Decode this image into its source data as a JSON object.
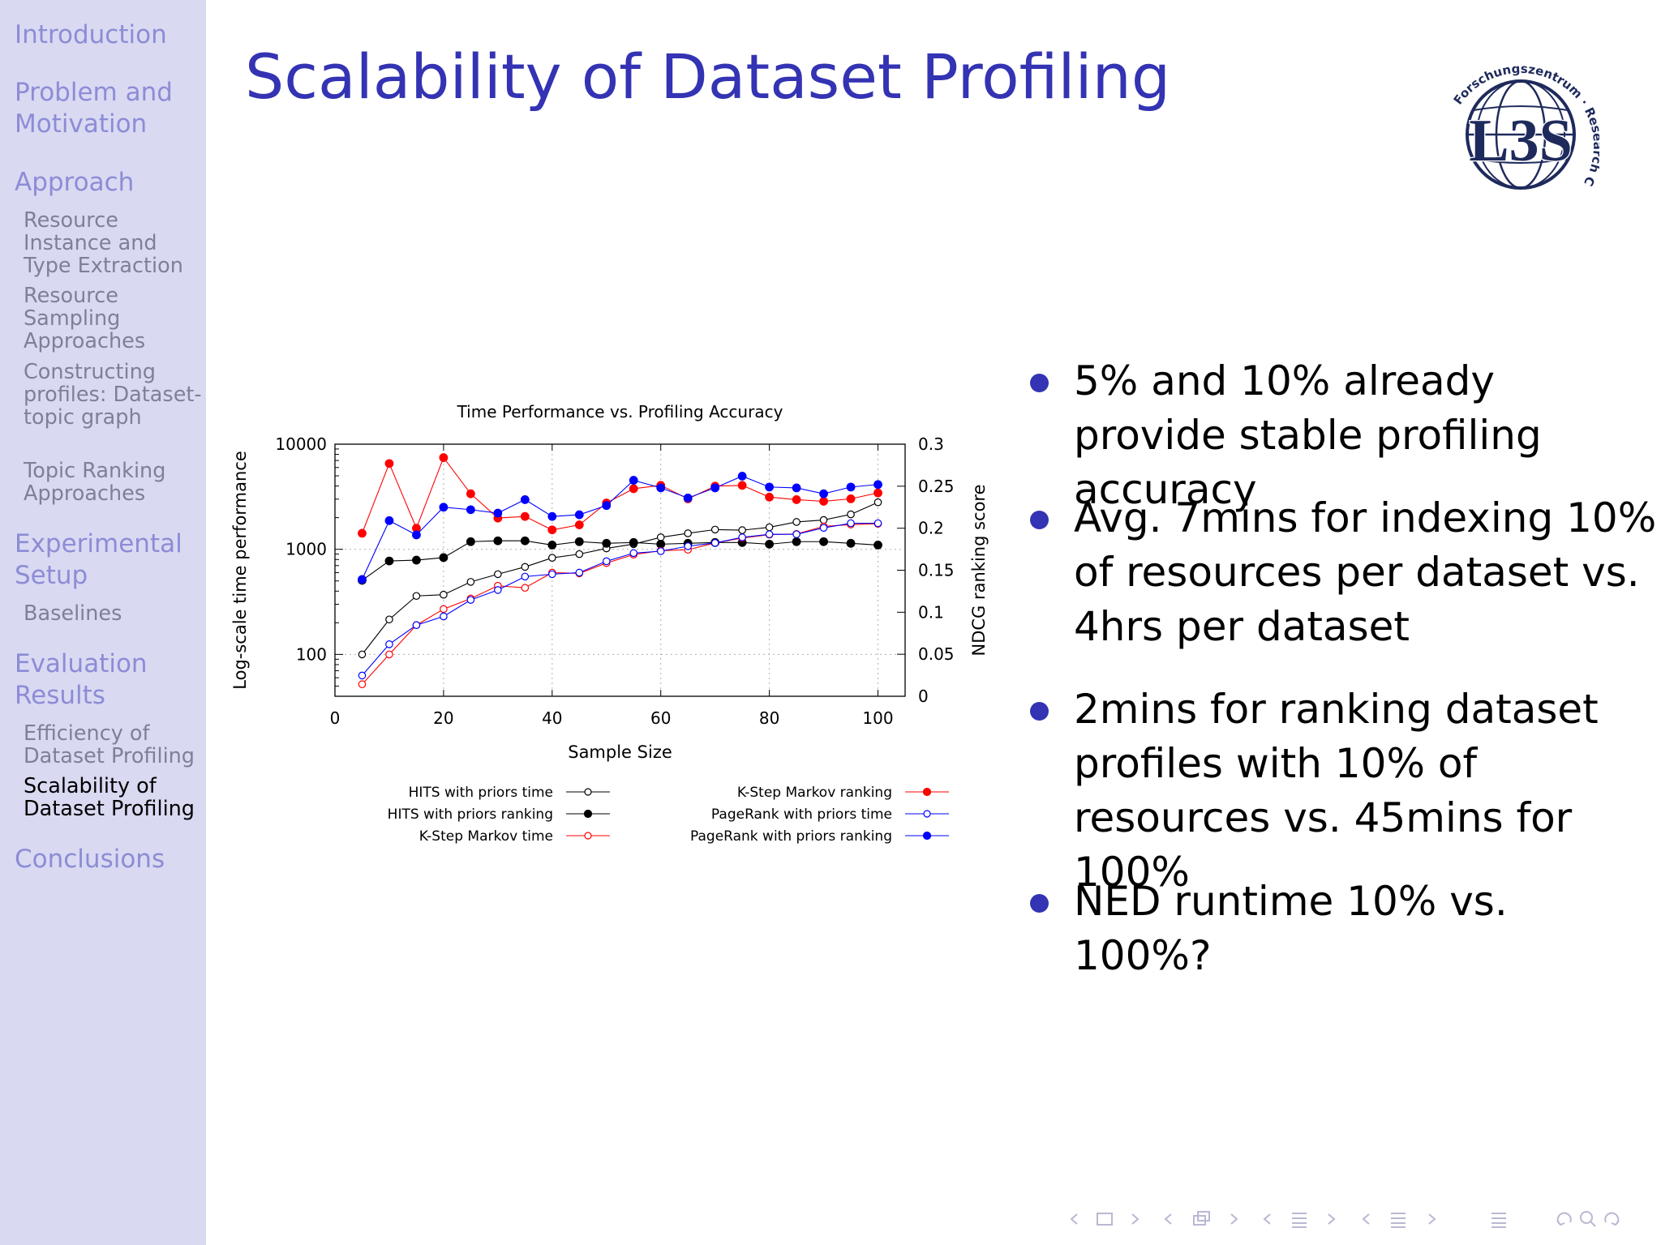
{
  "sidebar": {
    "sections": [
      {
        "label": "Introduction",
        "subs": []
      },
      {
        "label": "Problem and Motivation",
        "subs": []
      },
      {
        "label": "Approach",
        "subs": [
          "Resource Instance and Type Extraction",
          "Resource Sampling Approaches",
          "Constructing profiles: Dataset-topic graph",
          "Topic Ranking Approaches"
        ]
      },
      {
        "label": "Experimental Setup",
        "subs": [
          "Baselines"
        ]
      },
      {
        "label": "Evaluation Results",
        "subs": [
          "Efficiency of Dataset Profiling",
          "Scalability of Dataset Profiling"
        ]
      },
      {
        "label": "Conclusions",
        "subs": []
      }
    ],
    "active": "Scalability of Dataset Profiling"
  },
  "slide": {
    "title": "Scalability of Dataset Profiling",
    "logo": {
      "arc_text": "Forschungszentrum · Research Center",
      "mark": "L3S"
    },
    "bullets": [
      "5% and 10% already provide stable profiling accuracy",
      "Avg. 7mins for indexing 10% of resources per dataset vs. 4hrs per dataset",
      "2mins for ranking dataset profiles with 10% of resources vs. 45mins for 100%",
      "NED runtime 10% vs. 100%?"
    ]
  },
  "chart_data": {
    "type": "line",
    "title": "Time Performance vs. Profiling Accuracy",
    "xlabel": "Sample Size",
    "ylabel": "Log-scale time performance",
    "y2label": "NDCG ranking score",
    "xlim": [
      0,
      105
    ],
    "ylim": [
      40,
      10000
    ],
    "y2lim": [
      0,
      0.3
    ],
    "yscale": "log",
    "xticks": [
      0,
      20,
      40,
      60,
      80,
      100
    ],
    "yticks": [
      100,
      1000,
      10000
    ],
    "ytick_labels": [
      "100",
      "1000",
      "10000"
    ],
    "y2ticks": [
      0,
      0.05,
      0.1,
      0.15,
      0.2,
      0.25,
      0.3
    ],
    "y2tick_labels": [
      "0",
      "0.05",
      "0.1",
      "0.15",
      "0.2",
      "0.25",
      "0.3"
    ],
    "grid": true,
    "x": [
      5,
      10,
      15,
      20,
      25,
      30,
      35,
      40,
      45,
      50,
      55,
      60,
      65,
      70,
      75,
      80,
      85,
      90,
      95,
      100
    ],
    "series": [
      {
        "name": "HITS with priors time",
        "axis": "left",
        "color": "#000000",
        "filled": false,
        "values": [
          100,
          215,
          360,
          370,
          490,
          580,
          680,
          830,
          900,
          1020,
          1120,
          1300,
          1420,
          1540,
          1520,
          1620,
          1820,
          1900,
          2150,
          2800
        ]
      },
      {
        "name": "HITS with priors ranking",
        "axis": "right",
        "color": "#000000",
        "filled": true,
        "values": [
          0.138,
          0.161,
          0.162,
          0.165,
          0.184,
          0.185,
          0.185,
          0.18,
          0.184,
          0.182,
          0.183,
          0.181,
          0.182,
          0.183,
          0.183,
          0.181,
          0.184,
          0.184,
          0.182,
          0.18
        ]
      },
      {
        "name": "K-Step Markov time",
        "axis": "left",
        "color": "#ff0000",
        "filled": false,
        "values": [
          52,
          100,
          190,
          270,
          340,
          450,
          430,
          600,
          590,
          740,
          890,
          970,
          990,
          1150,
          1280,
          1380,
          1400,
          1650,
          1720,
          1750
        ]
      },
      {
        "name": "K-Step Markov ranking",
        "axis": "right",
        "color": "#ff0000",
        "filled": true,
        "values": [
          0.194,
          0.277,
          0.2,
          0.284,
          0.241,
          0.212,
          0.214,
          0.198,
          0.204,
          0.23,
          0.247,
          0.251,
          0.235,
          0.25,
          0.251,
          0.237,
          0.234,
          0.232,
          0.235,
          0.242
        ]
      },
      {
        "name": "PageRank with priors time",
        "axis": "left",
        "color": "#0000ff",
        "filled": false,
        "values": [
          63,
          125,
          190,
          230,
          330,
          410,
          550,
          580,
          600,
          770,
          920,
          960,
          1070,
          1150,
          1300,
          1390,
          1390,
          1600,
          1770,
          1770
        ]
      },
      {
        "name": "PageRank with priors ranking",
        "axis": "right",
        "color": "#0000ff",
        "filled": true,
        "values": [
          0.139,
          0.209,
          0.192,
          0.225,
          0.222,
          0.218,
          0.234,
          0.214,
          0.216,
          0.227,
          0.257,
          0.248,
          0.236,
          0.248,
          0.262,
          0.249,
          0.248,
          0.241,
          0.249,
          0.252
        ]
      }
    ],
    "legend": {
      "placement": "bottom",
      "columns": 2
    }
  },
  "navbar": {
    "icons": [
      "frame-left-icon",
      "frame-box-icon",
      "frame-right-icon",
      "slides-left-icon",
      "slides-icon",
      "slides-right-icon",
      "subsection-left-icon",
      "subsection-icon",
      "subsection-right-icon",
      "section-left-icon",
      "section-icon",
      "section-right-icon",
      "toc-icon",
      "undo-icon",
      "search-icon",
      "redo-icon"
    ]
  }
}
